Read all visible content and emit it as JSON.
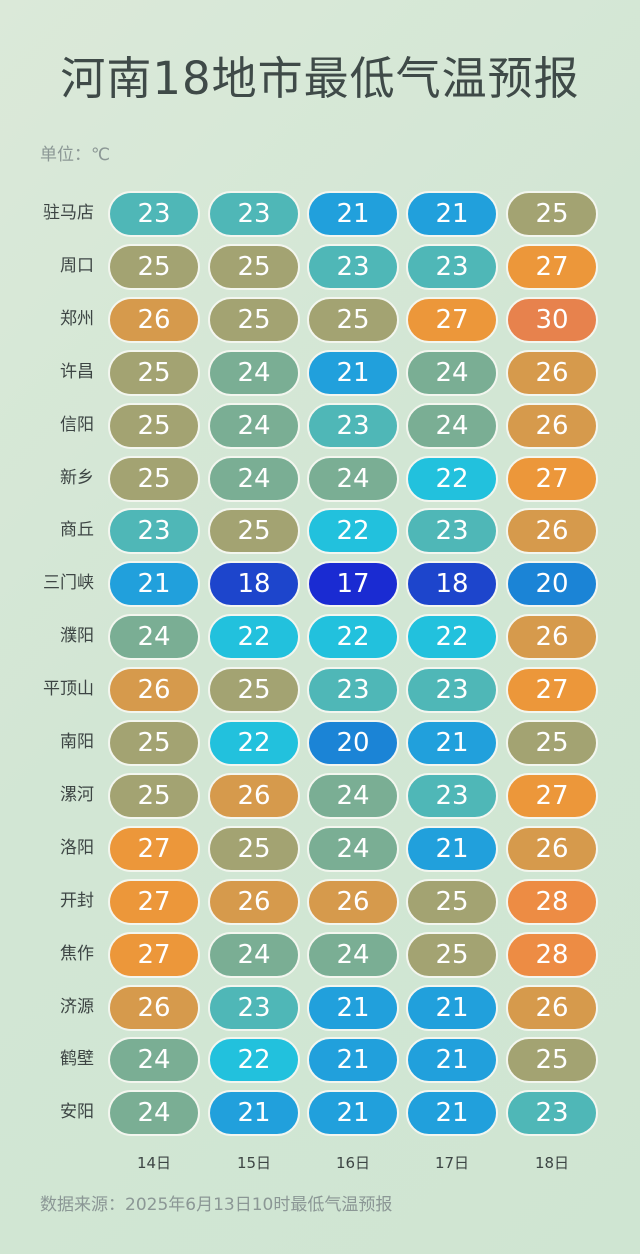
{
  "title": "河南18地市最低气温预报",
  "unit_label": "单位：℃",
  "source": "数据来源：2025年6月13日10时最低气温预报",
  "chart_data": {
    "type": "table",
    "title": "河南18地市最低气温预报",
    "unit": "℃",
    "columns": [
      "14日",
      "15日",
      "16日",
      "17日",
      "18日"
    ],
    "rows": [
      {
        "city": "驻马店",
        "values": [
          23,
          23,
          21,
          21,
          25
        ]
      },
      {
        "city": "周口",
        "values": [
          25,
          25,
          23,
          23,
          27
        ]
      },
      {
        "city": "郑州",
        "values": [
          26,
          25,
          25,
          27,
          30
        ]
      },
      {
        "city": "许昌",
        "values": [
          25,
          24,
          21,
          24,
          26
        ]
      },
      {
        "city": "信阳",
        "values": [
          25,
          24,
          23,
          24,
          26
        ]
      },
      {
        "city": "新乡",
        "values": [
          25,
          24,
          24,
          22,
          27
        ]
      },
      {
        "city": "商丘",
        "values": [
          23,
          25,
          22,
          23,
          26
        ]
      },
      {
        "city": "三门峡",
        "values": [
          21,
          18,
          17,
          18,
          20
        ]
      },
      {
        "city": "濮阳",
        "values": [
          24,
          22,
          22,
          22,
          26
        ]
      },
      {
        "city": "平顶山",
        "values": [
          26,
          25,
          23,
          23,
          27
        ]
      },
      {
        "city": "南阳",
        "values": [
          25,
          22,
          20,
          21,
          25
        ]
      },
      {
        "city": "漯河",
        "values": [
          25,
          26,
          24,
          23,
          27
        ]
      },
      {
        "city": "洛阳",
        "values": [
          27,
          25,
          24,
          21,
          26
        ]
      },
      {
        "city": "开封",
        "values": [
          27,
          26,
          26,
          25,
          28
        ]
      },
      {
        "city": "焦作",
        "values": [
          27,
          24,
          24,
          25,
          28
        ]
      },
      {
        "city": "济源",
        "values": [
          26,
          23,
          21,
          21,
          26
        ]
      },
      {
        "city": "鹤壁",
        "values": [
          24,
          22,
          21,
          21,
          25
        ]
      },
      {
        "city": "安阳",
        "values": [
          24,
          21,
          21,
          21,
          23
        ]
      }
    ],
    "color_scale": {
      "17": "#1a2bd2",
      "18": "#1d45cc",
      "20": "#1b84d6",
      "21": "#21a0dc",
      "22": "#22c1dd",
      "23": "#4fb7b7",
      "24": "#7aae94",
      "25": "#a3a372",
      "26": "#d69a4c",
      "27": "#ec973a",
      "28": "#ed8c44",
      "30": "#e7824d"
    }
  }
}
